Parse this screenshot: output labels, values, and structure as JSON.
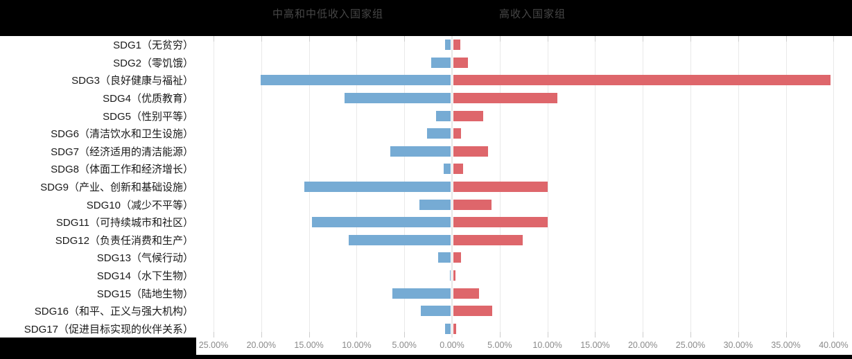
{
  "legend": {
    "left_label": "中高和中低收入国家组",
    "right_label": "高收入国家组"
  },
  "colors": {
    "left_series": "#76abd4",
    "right_series": "#de666b",
    "band_background": "#000000",
    "plot_background": "#ffffff",
    "gridline": "#e9e9e9",
    "tick": "#cccccc",
    "zero_line": "#e7e7e7",
    "axis_text": "#8a8a8a",
    "category_text": "#1a1a1a",
    "legend_text": "#464646"
  },
  "chart_data": {
    "type": "bar",
    "orientation": "horizontal-diverging",
    "title": "",
    "xlabel": "",
    "ylabel": "",
    "grid": true,
    "legend_position": "top",
    "categories": [
      "SDG1（无贫穷）",
      "SDG2（零饥饿）",
      "SDG3（良好健康与福祉）",
      "SDG4（优质教育）",
      "SDG5（性别平等）",
      "SDG6（清洁饮水和卫生设施）",
      "SDG7（经济适用的清洁能源）",
      "SDG8（体面工作和经济增长）",
      "SDG9（产业、创新和基础设施）",
      "SDG10（减少不平等）",
      "SDG11（可持续城市和社区）",
      "SDG12（负责任消费和生产）",
      "SDG13（气候行动）",
      "SDG14（水下生物）",
      "SDG15（陆地生物）",
      "SDG16（和平、正义与强大机构）",
      "SDG17（促进目标实现的伙伴关系）"
    ],
    "series": [
      {
        "name": "中高和中低收入国家组",
        "side": "left",
        "color": "#76abd4",
        "unit": "%",
        "values": [
          0.6,
          2.0,
          19.9,
          11.1,
          1.5,
          2.5,
          6.3,
          0.7,
          15.3,
          3.3,
          14.5,
          10.7,
          1.3,
          0.1,
          6.1,
          3.1,
          0.6
        ]
      },
      {
        "name": "高收入国家组",
        "side": "right",
        "color": "#de666b",
        "unit": "%",
        "values": [
          0.7,
          1.5,
          39.5,
          10.9,
          3.1,
          0.8,
          3.6,
          1.0,
          9.9,
          4.0,
          9.9,
          7.3,
          0.8,
          0.2,
          2.7,
          4.1,
          0.3
        ]
      }
    ],
    "x_tick_labels": [
      "25.00%",
      "20.00%",
      "15.00%",
      "10.00%",
      "5.00%",
      "0.00%",
      "5.00%",
      "10.00%",
      "15.00%",
      "20.00%",
      "25.00%",
      "30.00%",
      "35.00%",
      "40.00%"
    ],
    "x_tick_values": [
      -25,
      -20,
      -15,
      -10,
      -5,
      0,
      5,
      10,
      15,
      20,
      25,
      30,
      35,
      40
    ],
    "xlim": [
      -26.8,
      41.9
    ]
  }
}
